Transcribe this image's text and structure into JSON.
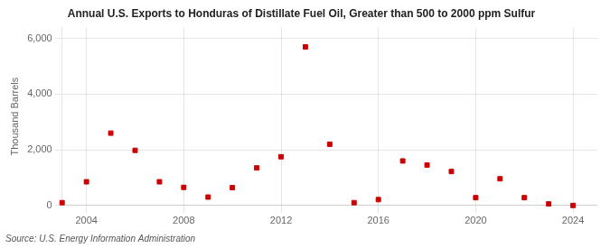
{
  "chart_data": {
    "type": "scatter",
    "title": "Annual U.S. Exports to Honduras of Distillate Fuel Oil, Greater than 500 to 2000 ppm Sulfur",
    "ylabel": "Thousand Barrels",
    "source": "Source: U.S. Energy Information Administration",
    "x": [
      2003,
      2004,
      2005,
      2006,
      2007,
      2008,
      2009,
      2010,
      2011,
      2012,
      2013,
      2014,
      2015,
      2016,
      2017,
      2018,
      2019,
      2020,
      2021,
      2022,
      2023,
      2024
    ],
    "values": [
      100,
      850,
      2600,
      1980,
      850,
      650,
      300,
      640,
      1350,
      1750,
      5700,
      2200,
      100,
      210,
      1600,
      1450,
      1220,
      280,
      960,
      280,
      55,
      0
    ],
    "color": "#cc0000",
    "marker": "square",
    "xlim": [
      2003.0,
      2025.0
    ],
    "xticks": [
      2004,
      2008,
      2012,
      2016,
      2020,
      2024
    ],
    "ylim": [
      0,
      6400
    ],
    "yticks": [
      0,
      {
        "value": 2000,
        "label": "2,000"
      },
      {
        "value": 4000,
        "label": "4,000"
      },
      {
        "value": 6000,
        "label": "6,000"
      }
    ],
    "grid": true
  }
}
